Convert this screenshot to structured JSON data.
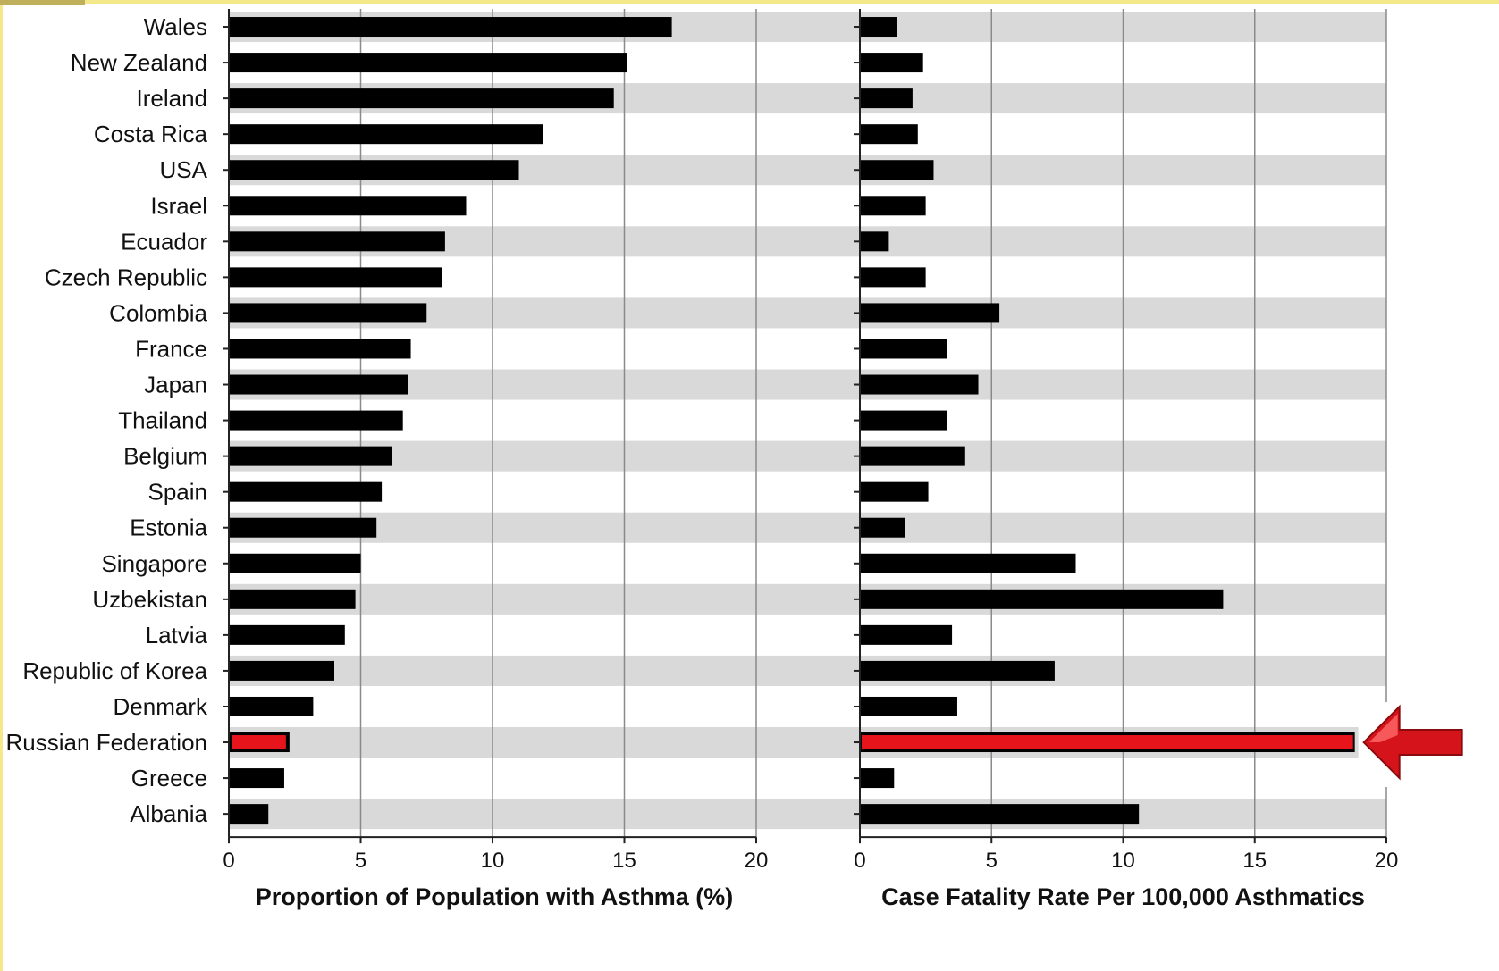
{
  "chart_data": {
    "type": "bar",
    "orientation": "horizontal",
    "grid": true,
    "highlight_color": "#e8141b",
    "bar_color": "#000000",
    "band_color": "#d9d9d9",
    "highlight_category": "Russian Federation",
    "categories": [
      "Wales",
      "New Zealand",
      "Ireland",
      "Costa Rica",
      "USA",
      "Israel",
      "Ecuador",
      "Czech Republic",
      "Colombia",
      "France",
      "Japan",
      "Thailand",
      "Belgium",
      "Spain",
      "Estonia",
      "Singapore",
      "Uzbekistan",
      "Latvia",
      "Republic of Korea",
      "Denmark",
      "Russian Federation",
      "Greece",
      "Albania"
    ],
    "panels": [
      {
        "xlabel": "Proportion of Population with Asthma (%)",
        "xlim": [
          0,
          20
        ],
        "ticks": [
          "0",
          "5",
          "10",
          "15",
          "20"
        ],
        "values": [
          16.8,
          15.1,
          14.6,
          11.9,
          11.0,
          9.0,
          8.2,
          8.1,
          7.5,
          6.9,
          6.8,
          6.6,
          6.2,
          5.8,
          5.6,
          5.0,
          4.8,
          4.4,
          4.0,
          3.2,
          2.3,
          2.1,
          1.5
        ]
      },
      {
        "xlabel": "Case Fatality Rate Per 100,000 Asthmatics",
        "xlim": [
          0,
          20
        ],
        "ticks": [
          "0",
          "5",
          "10",
          "15",
          "20"
        ],
        "values": [
          1.4,
          2.4,
          2.0,
          2.2,
          2.8,
          2.5,
          1.1,
          2.5,
          5.3,
          3.3,
          4.5,
          3.3,
          4.0,
          2.6,
          1.7,
          8.2,
          13.8,
          3.5,
          7.4,
          3.7,
          18.8,
          1.3,
          10.6
        ]
      }
    ]
  }
}
